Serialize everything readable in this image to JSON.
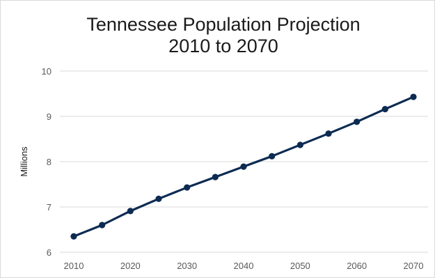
{
  "chart_data": {
    "type": "line",
    "title": "Tennessee Population Projection",
    "subtitle": "2010 to 2070",
    "xlabel": "",
    "ylabel": "Millions",
    "x": [
      2010,
      2015,
      2020,
      2025,
      2030,
      2035,
      2040,
      2045,
      2050,
      2055,
      2060,
      2065,
      2070
    ],
    "x_ticks": [
      "2010",
      "2020",
      "2030",
      "2040",
      "2050",
      "2060",
      "2070"
    ],
    "series": [
      {
        "values": [
          6.35,
          6.6,
          6.91,
          7.18,
          7.43,
          7.66,
          7.89,
          8.12,
          8.37,
          8.62,
          8.88,
          9.16,
          9.43
        ]
      }
    ],
    "y_ticks": [
      "6",
      "7",
      "8",
      "9",
      "10"
    ],
    "ylim": [
      6,
      10
    ],
    "xlim": [
      2010,
      2070
    ],
    "grid": true,
    "legend": "none",
    "colors": {
      "line": "#0d2b52",
      "grid": "#d9d9d9",
      "tick_text": "#595959"
    }
  }
}
